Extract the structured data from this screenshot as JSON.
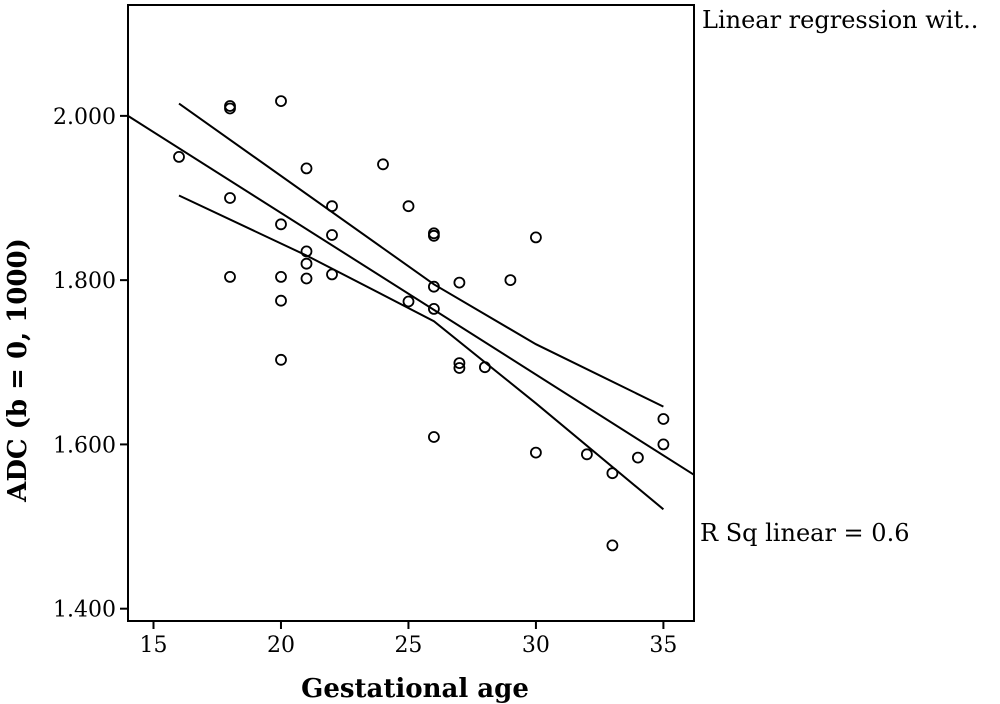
{
  "chart_data": {
    "type": "scatter",
    "xlabel": "Gestational age",
    "ylabel": "ADC (b = 0, 1000)",
    "xlim": [
      14,
      36.2
    ],
    "ylim": [
      1.385,
      2.135
    ],
    "x_ticks": [
      15,
      20,
      25,
      30,
      35
    ],
    "x_tick_labels": [
      "15",
      "20",
      "25",
      "30",
      "35"
    ],
    "y_ticks": [
      1.4,
      1.6,
      1.8,
      2.0
    ],
    "y_tick_labels": [
      "1.400",
      "1.600",
      "1.800",
      "2.000"
    ],
    "grid": false,
    "legend": "none",
    "annotations": {
      "top_right": "Linear regression wit..",
      "r_squared": "R Sq linear = 0.6"
    },
    "points": [
      [
        16,
        1.95
      ],
      [
        18,
        2.012
      ],
      [
        18,
        2.009
      ],
      [
        18,
        1.9
      ],
      [
        18,
        1.804
      ],
      [
        20,
        2.018
      ],
      [
        20,
        1.868
      ],
      [
        20,
        1.804
      ],
      [
        20,
        1.775
      ],
      [
        20,
        1.703
      ],
      [
        21,
        1.936
      ],
      [
        21,
        1.835
      ],
      [
        21,
        1.82
      ],
      [
        21,
        1.802
      ],
      [
        22,
        1.89
      ],
      [
        22,
        1.855
      ],
      [
        22,
        1.807
      ],
      [
        24,
        1.941
      ],
      [
        25,
        1.89
      ],
      [
        25,
        1.774
      ],
      [
        26,
        1.857
      ],
      [
        26,
        1.854
      ],
      [
        26,
        1.792
      ],
      [
        26,
        1.765
      ],
      [
        26,
        1.609
      ],
      [
        27,
        1.797
      ],
      [
        27,
        1.699
      ],
      [
        27,
        1.693
      ],
      [
        28,
        1.694
      ],
      [
        29,
        1.8
      ],
      [
        30,
        1.852
      ],
      [
        30,
        1.59
      ],
      [
        32,
        1.588
      ],
      [
        33,
        1.565
      ],
      [
        33,
        1.477
      ],
      [
        34,
        1.584
      ],
      [
        35,
        1.631
      ],
      [
        35,
        1.6
      ]
    ],
    "fit_line": {
      "x": [
        14,
        36.2
      ],
      "y": [
        2.0,
        1.563
      ]
    },
    "ci_upper": {
      "x": [
        16,
        26,
        30,
        35
      ],
      "y": [
        2.015,
        1.795,
        1.722,
        1.646
      ]
    },
    "ci_lower": {
      "x": [
        16,
        21,
        26,
        30,
        35
      ],
      "y": [
        1.903,
        1.83,
        1.75,
        1.65,
        1.521
      ]
    }
  }
}
